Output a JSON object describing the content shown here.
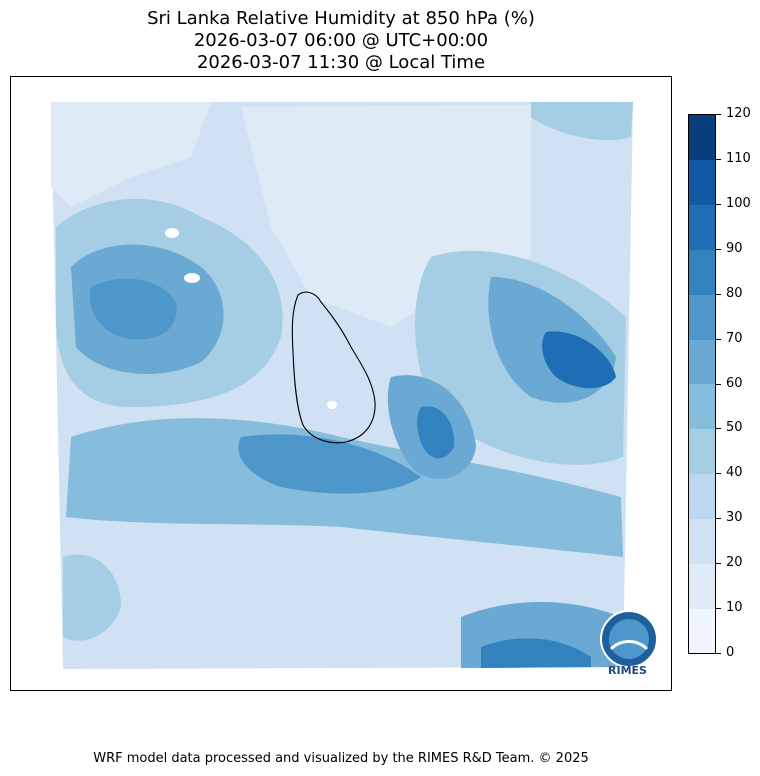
{
  "title": {
    "line1": "Sri Lanka Relative Humidity at 850 hPa (%)",
    "line2": "2026-03-07 06:00 @ UTC+00:00",
    "line3": "2026-03-07 11:30 @ Local Time"
  },
  "colorbar": {
    "min": 0,
    "max": 120,
    "ticks": [
      "0",
      "10",
      "20",
      "30",
      "40",
      "50",
      "60",
      "70",
      "80",
      "90",
      "100",
      "110",
      "120"
    ],
    "colors": [
      "#f0f6fd",
      "#deebf7",
      "#cfe1f2",
      "#bdd7ee",
      "#a5cde3",
      "#86bcdc",
      "#69a9d4",
      "#4e97cb",
      "#3282be",
      "#1f6db4",
      "#0f5aa4",
      "#083d7e"
    ]
  },
  "logo": {
    "text": "RIMES"
  },
  "footer": {
    "credit": "WRF model data processed and visualized by the RIMES R&D Team. © 2025"
  }
}
